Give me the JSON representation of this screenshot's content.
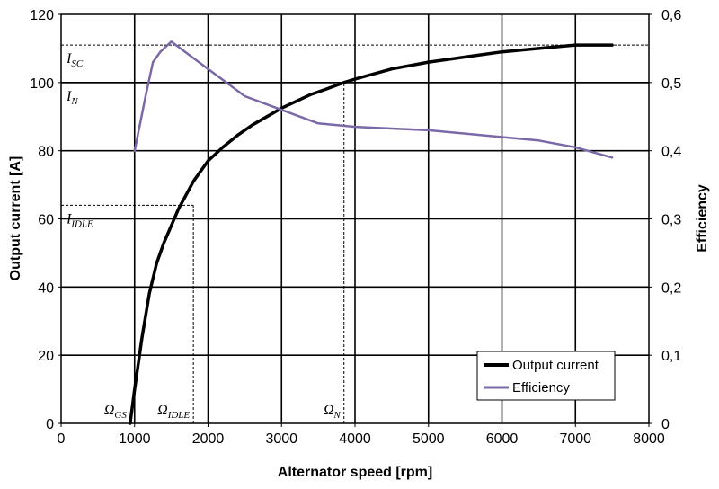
{
  "chart_data": {
    "type": "line",
    "xlabel": "Alternator speed [rpm]",
    "ylabel": "Output current [A]",
    "y2label": "Efficiency",
    "xlim": [
      0,
      8000
    ],
    "ylim": [
      0,
      120
    ],
    "y2lim": [
      0,
      0.6
    ],
    "xticks": [
      "0",
      "1000",
      "2000",
      "3000",
      "4000",
      "5000",
      "6000",
      "7000",
      "8000"
    ],
    "yticks": [
      "0",
      "20",
      "40",
      "60",
      "80",
      "100",
      "120"
    ],
    "y2ticks": [
      "0",
      "0,1",
      "0,2",
      "0,3",
      "0,4",
      "0,5",
      "0,6"
    ],
    "grid": true,
    "legend_position": "bottom-right",
    "series": [
      {
        "name": "Output current",
        "axis": "left",
        "color": "#000000",
        "x": [
          940,
          1000,
          1100,
          1200,
          1300,
          1400,
          1500,
          1600,
          1700,
          1800,
          1900,
          2000,
          2200,
          2400,
          2600,
          2800,
          3000,
          3200,
          3400,
          3600,
          3850,
          4000,
          4500,
          5000,
          5500,
          6000,
          6500,
          7000,
          7500
        ],
        "y": [
          0,
          10,
          25,
          38,
          47,
          53,
          58,
          63,
          67,
          71,
          74,
          77,
          81,
          84.5,
          87.5,
          90,
          92.5,
          94.5,
          96.5,
          98,
          100,
          101,
          104,
          106,
          107.5,
          109,
          110,
          111,
          111
        ]
      },
      {
        "name": "Efficiency",
        "axis": "right",
        "color": "#7b68a6",
        "x": [
          1000,
          1150,
          1250,
          1350,
          1500,
          2000,
          2500,
          3000,
          3500,
          4000,
          5000,
          6000,
          6500,
          7000,
          7500
        ],
        "y": [
          0.4,
          0.48,
          0.53,
          0.545,
          0.56,
          0.52,
          0.48,
          0.46,
          0.44,
          0.435,
          0.43,
          0.42,
          0.415,
          0.405,
          0.39
        ]
      }
    ],
    "reference_lines": [
      {
        "label": "I",
        "sub": "SC",
        "kind": "hline",
        "y": 111,
        "dashed": true
      },
      {
        "label": "I",
        "sub": "N",
        "kind": "hline",
        "y": 100,
        "dashed": false
      },
      {
        "label": "I",
        "sub": "IDLE",
        "kind": "hline",
        "y": 64,
        "x_end": 1800,
        "dashed": true
      },
      {
        "label": "Ω",
        "sub": "GS",
        "kind": "vline",
        "x": 940
      },
      {
        "label": "Ω",
        "sub": "IDLE",
        "kind": "vline",
        "x": 1800,
        "y_end": 64
      },
      {
        "label": "Ω",
        "sub": "N",
        "kind": "vline",
        "x": 3850,
        "y_end": 100
      }
    ]
  }
}
